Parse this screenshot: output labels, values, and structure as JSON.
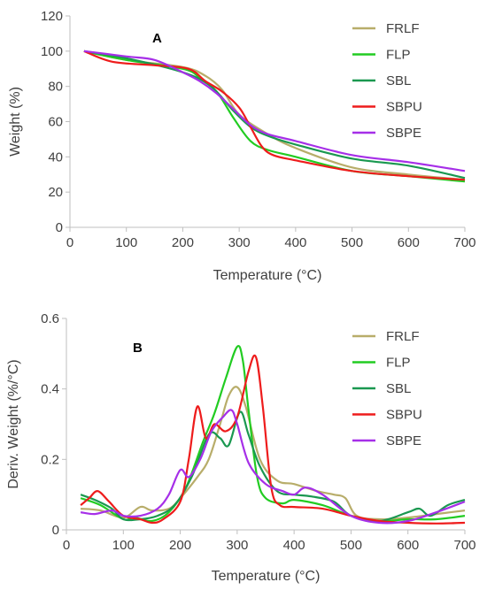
{
  "chart_data": [
    {
      "type": "line",
      "panel_label": "A",
      "xlabel": "Temperature (°C)",
      "ylabel": "Weight (%)",
      "xlim": [
        0,
        700
      ],
      "ylim": [
        0,
        120
      ],
      "xticks": [
        0,
        100,
        200,
        300,
        400,
        500,
        600,
        700
      ],
      "yticks": [
        0,
        20,
        40,
        60,
        80,
        100,
        120
      ],
      "grid": false,
      "legend_position": "right",
      "series": [
        {
          "name": "FRLF",
          "color": "#b8ad6a",
          "points": [
            [
              25,
              100
            ],
            [
              100,
              95
            ],
            [
              200,
              91
            ],
            [
              240,
              86
            ],
            [
              270,
              78
            ],
            [
              300,
              64
            ],
            [
              350,
              53
            ],
            [
              400,
              45
            ],
            [
              500,
              34
            ],
            [
              600,
              30
            ],
            [
              700,
              27
            ]
          ]
        },
        {
          "name": "FLP",
          "color": "#22cc22",
          "points": [
            [
              25,
              100
            ],
            [
              100,
              95
            ],
            [
              200,
              90
            ],
            [
              230,
              85
            ],
            [
              260,
              77
            ],
            [
              290,
              62
            ],
            [
              320,
              49
            ],
            [
              350,
              44
            ],
            [
              400,
              40
            ],
            [
              500,
              32
            ],
            [
              600,
              29
            ],
            [
              700,
              26
            ]
          ]
        },
        {
          "name": "SBL",
          "color": "#1a9850",
          "points": [
            [
              25,
              100
            ],
            [
              100,
              96
            ],
            [
              200,
              88
            ],
            [
              250,
              80
            ],
            [
              290,
              66
            ],
            [
              320,
              57
            ],
            [
              350,
              52
            ],
            [
              400,
              47
            ],
            [
              500,
              39
            ],
            [
              600,
              35
            ],
            [
              700,
              28
            ]
          ]
        },
        {
          "name": "SBPU",
          "color": "#ee1c1c",
          "points": [
            [
              25,
              100
            ],
            [
              75,
              94
            ],
            [
              150,
              92
            ],
            [
              210,
              90
            ],
            [
              240,
              83
            ],
            [
              270,
              77
            ],
            [
              300,
              68
            ],
            [
              320,
              57
            ],
            [
              340,
              46
            ],
            [
              360,
              41
            ],
            [
              400,
              38
            ],
            [
              500,
              32
            ],
            [
              600,
              29
            ],
            [
              700,
              27
            ]
          ]
        },
        {
          "name": "SBPE",
          "color": "#a62fe8",
          "points": [
            [
              25,
              100
            ],
            [
              100,
              97
            ],
            [
              150,
              95
            ],
            [
              200,
              88
            ],
            [
              230,
              83
            ],
            [
              260,
              76
            ],
            [
              290,
              67
            ],
            [
              320,
              58
            ],
            [
              350,
              53
            ],
            [
              400,
              49
            ],
            [
              500,
              41
            ],
            [
              600,
              37
            ],
            [
              700,
              32
            ]
          ]
        }
      ]
    },
    {
      "type": "line",
      "panel_label": "B",
      "xlabel": "Temperature (°C)",
      "ylabel": "Deriv. Weight (%/°C)",
      "xlim": [
        0,
        700
      ],
      "ylim": [
        0,
        0.6
      ],
      "xticks": [
        0,
        100,
        200,
        300,
        400,
        500,
        600,
        700
      ],
      "yticks": [
        0,
        0.2,
        0.4,
        0.6
      ],
      "ytick_labels": [
        "0",
        "0.2",
        "0.4",
        "0.6"
      ],
      "grid": false,
      "legend_position": "right",
      "series": [
        {
          "name": "FRLF",
          "color": "#b8ad6a",
          "points": [
            [
              25,
              0.06
            ],
            [
              60,
              0.055
            ],
            [
              100,
              0.035
            ],
            [
              130,
              0.065
            ],
            [
              150,
              0.055
            ],
            [
              180,
              0.06
            ],
            [
              200,
              0.09
            ],
            [
              230,
              0.15
            ],
            [
              250,
              0.2
            ],
            [
              270,
              0.3
            ],
            [
              285,
              0.38
            ],
            [
              300,
              0.405
            ],
            [
              315,
              0.35
            ],
            [
              340,
              0.2
            ],
            [
              370,
              0.14
            ],
            [
              400,
              0.13
            ],
            [
              440,
              0.11
            ],
            [
              470,
              0.1
            ],
            [
              490,
              0.09
            ],
            [
              510,
              0.04
            ],
            [
              550,
              0.03
            ],
            [
              600,
              0.035
            ],
            [
              650,
              0.045
            ],
            [
              700,
              0.055
            ]
          ]
        },
        {
          "name": "FLP",
          "color": "#22cc22",
          "points": [
            [
              25,
              0.09
            ],
            [
              60,
              0.07
            ],
            [
              100,
              0.03
            ],
            [
              120,
              0.035
            ],
            [
              150,
              0.025
            ],
            [
              180,
              0.05
            ],
            [
              210,
              0.12
            ],
            [
              240,
              0.25
            ],
            [
              260,
              0.33
            ],
            [
              280,
              0.43
            ],
            [
              300,
              0.52
            ],
            [
              310,
              0.48
            ],
            [
              320,
              0.34
            ],
            [
              335,
              0.15
            ],
            [
              350,
              0.09
            ],
            [
              380,
              0.075
            ],
            [
              400,
              0.085
            ],
            [
              450,
              0.07
            ],
            [
              500,
              0.04
            ],
            [
              550,
              0.025
            ],
            [
              600,
              0.03
            ],
            [
              650,
              0.03
            ],
            [
              700,
              0.04
            ]
          ]
        },
        {
          "name": "SBL",
          "color": "#1a9850",
          "points": [
            [
              25,
              0.1
            ],
            [
              50,
              0.085
            ],
            [
              80,
              0.06
            ],
            [
              100,
              0.03
            ],
            [
              130,
              0.03
            ],
            [
              160,
              0.04
            ],
            [
              190,
              0.07
            ],
            [
              220,
              0.15
            ],
            [
              250,
              0.27
            ],
            [
              270,
              0.26
            ],
            [
              285,
              0.24
            ],
            [
              305,
              0.335
            ],
            [
              320,
              0.27
            ],
            [
              340,
              0.18
            ],
            [
              370,
              0.11
            ],
            [
              400,
              0.1
            ],
            [
              430,
              0.095
            ],
            [
              470,
              0.08
            ],
            [
              500,
              0.04
            ],
            [
              550,
              0.025
            ],
            [
              600,
              0.05
            ],
            [
              620,
              0.06
            ],
            [
              640,
              0.04
            ],
            [
              670,
              0.07
            ],
            [
              700,
              0.085
            ]
          ]
        },
        {
          "name": "SBPU",
          "color": "#ee1c1c",
          "points": [
            [
              25,
              0.07
            ],
            [
              40,
              0.09
            ],
            [
              55,
              0.11
            ],
            [
              75,
              0.08
            ],
            [
              100,
              0.04
            ],
            [
              130,
              0.03
            ],
            [
              150,
              0.02
            ],
            [
              170,
              0.03
            ],
            [
              200,
              0.08
            ],
            [
              215,
              0.2
            ],
            [
              230,
              0.35
            ],
            [
              245,
              0.26
            ],
            [
              260,
              0.3
            ],
            [
              280,
              0.28
            ],
            [
              300,
              0.32
            ],
            [
              320,
              0.45
            ],
            [
              333,
              0.49
            ],
            [
              345,
              0.35
            ],
            [
              360,
              0.12
            ],
            [
              375,
              0.07
            ],
            [
              400,
              0.065
            ],
            [
              450,
              0.06
            ],
            [
              500,
              0.04
            ],
            [
              550,
              0.025
            ],
            [
              600,
              0.02
            ],
            [
              650,
              0.018
            ],
            [
              700,
              0.02
            ]
          ]
        },
        {
          "name": "SBPE",
          "color": "#a62fe8",
          "points": [
            [
              25,
              0.05
            ],
            [
              50,
              0.045
            ],
            [
              80,
              0.055
            ],
            [
              100,
              0.04
            ],
            [
              130,
              0.04
            ],
            [
              160,
              0.06
            ],
            [
              180,
              0.1
            ],
            [
              200,
              0.17
            ],
            [
              215,
              0.15
            ],
            [
              235,
              0.2
            ],
            [
              255,
              0.28
            ],
            [
              275,
              0.32
            ],
            [
              290,
              0.34
            ],
            [
              300,
              0.3
            ],
            [
              320,
              0.19
            ],
            [
              350,
              0.13
            ],
            [
              380,
              0.11
            ],
            [
              400,
              0.1
            ],
            [
              420,
              0.12
            ],
            [
              450,
              0.1
            ],
            [
              500,
              0.04
            ],
            [
              550,
              0.02
            ],
            [
              600,
              0.025
            ],
            [
              650,
              0.05
            ],
            [
              700,
              0.08
            ]
          ]
        }
      ]
    }
  ]
}
